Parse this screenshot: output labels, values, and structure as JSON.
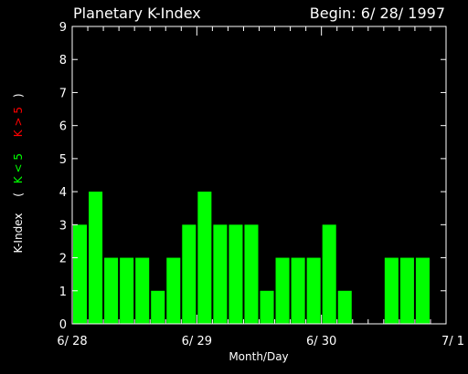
{
  "chart_data": {
    "type": "bar",
    "title": "Planetary K-Index",
    "begin_label": "Begin: 6/ 28/ 1997",
    "xlabel": "Month/Day",
    "ylabel": {
      "main": "K-Index",
      "open": "(",
      "green_part": "K < 5",
      "red_part": "K > 5",
      "close": ")"
    },
    "ylim": [
      0,
      9
    ],
    "yticks": [
      "0",
      "1",
      "2",
      "3",
      "4",
      "5",
      "6",
      "7",
      "8",
      "9"
    ],
    "xticks": [
      "6/ 28",
      "6/ 29",
      "6/ 30",
      "7/ 1"
    ],
    "bars_per_day": 8,
    "days": 3,
    "values": [
      3,
      4,
      2,
      2,
      2,
      1,
      2,
      3,
      4,
      3,
      3,
      3,
      1,
      2,
      2,
      2,
      3,
      1,
      0,
      0,
      2,
      2,
      2,
      0
    ],
    "colors": {
      "background": "#000000",
      "axis": "#ffffff",
      "bar_low": "#00ff00",
      "bar_high": "#ff0000"
    }
  }
}
